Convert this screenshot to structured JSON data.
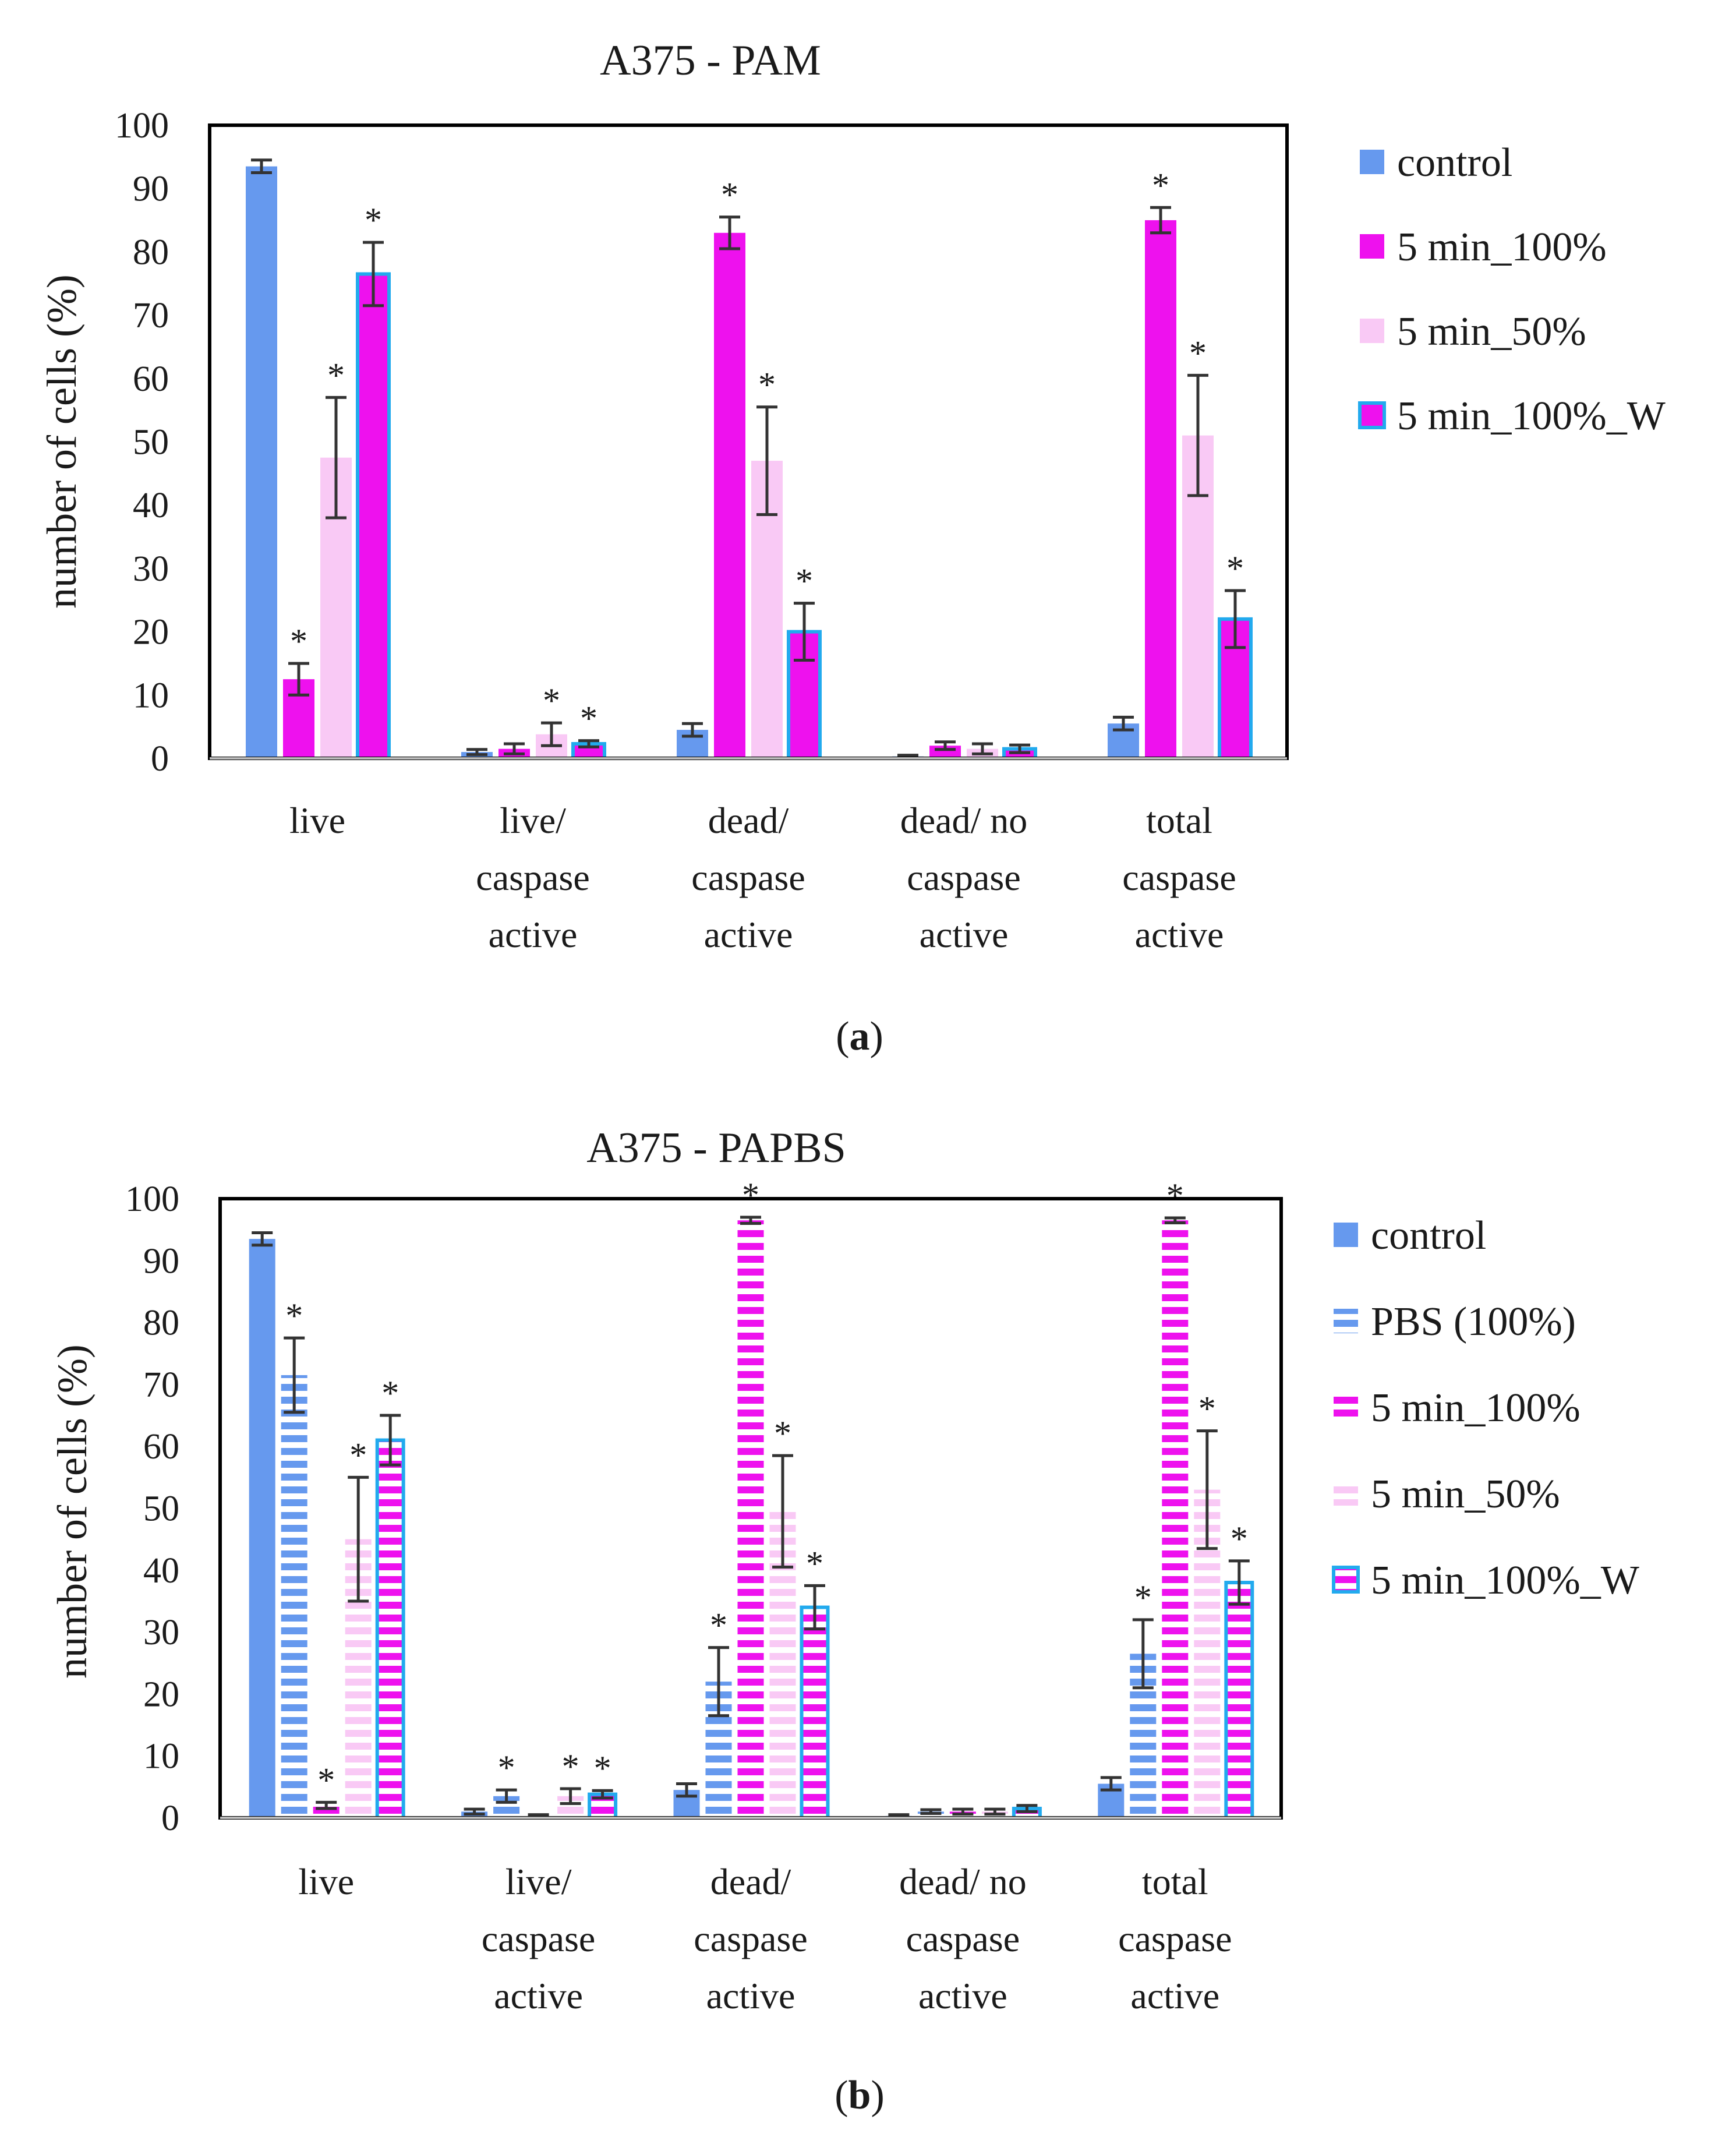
{
  "colors": {
    "control": "#6699ee",
    "min100": "#ee11ee",
    "min50": "#f9c9f5",
    "min100w": "#ee11ee",
    "min100w_border": "#22aaee",
    "pbs": "#6699ee",
    "error": "#333333",
    "axis_frame": "#000000"
  },
  "chart_data": [
    {
      "id": "a",
      "type": "bar",
      "title": "A375 - PAM",
      "caption_open": "(",
      "caption_letter": "a",
      "caption_close": ")",
      "ylabel": "number of cells (%)",
      "xlabel": "",
      "ylim": [
        0,
        100
      ],
      "yticks": [
        0,
        10,
        20,
        30,
        40,
        50,
        60,
        70,
        80,
        90,
        100
      ],
      "categories": [
        [
          "live"
        ],
        [
          "live/",
          "caspase",
          "active"
        ],
        [
          "dead/",
          "caspase",
          "active"
        ],
        [
          "dead/ no",
          "caspase",
          "active"
        ],
        [
          "total",
          "caspase",
          "active"
        ]
      ],
      "series": [
        {
          "name": "control",
          "style": "solid",
          "color_key": "control",
          "values": [
            93.5,
            1,
            4.5,
            0.3,
            5.5
          ],
          "errors": [
            1,
            0.4,
            1,
            0.2,
            1
          ],
          "stars": [
            false,
            false,
            false,
            false,
            false
          ]
        },
        {
          "name": "5 min_100%",
          "style": "solid",
          "color_key": "min100",
          "values": [
            12.5,
            1.5,
            83,
            2,
            85
          ],
          "errors": [
            2.5,
            0.8,
            2.5,
            0.6,
            2
          ],
          "stars": [
            true,
            false,
            true,
            false,
            true
          ]
        },
        {
          "name": "5 min_50%",
          "style": "solid",
          "color_key": "min50",
          "values": [
            47.5,
            3.8,
            47,
            1.5,
            51
          ],
          "errors": [
            9.5,
            1.8,
            8.5,
            0.8,
            9.5
          ],
          "stars": [
            true,
            true,
            true,
            false,
            true
          ]
        },
        {
          "name": "5 min_100%_W",
          "style": "bordered",
          "color_key": "min100w",
          "values": [
            76.5,
            2.3,
            20,
            1.5,
            22
          ],
          "errors": [
            5,
            0.5,
            4.5,
            0.6,
            4.5
          ],
          "stars": [
            true,
            true,
            true,
            false,
            true
          ]
        }
      ]
    },
    {
      "id": "b",
      "type": "bar",
      "title": "A375 - PAPBS",
      "caption_open": "(",
      "caption_letter": "b",
      "caption_close": ")",
      "ylabel": "number of cells (%)",
      "xlabel": "",
      "ylim": [
        0,
        100
      ],
      "yticks": [
        0,
        10,
        20,
        30,
        40,
        50,
        60,
        70,
        80,
        90,
        100
      ],
      "categories": [
        [
          "live"
        ],
        [
          "live/",
          "caspase",
          "active"
        ],
        [
          "dead/",
          "caspase",
          "active"
        ],
        [
          "dead/ no",
          "caspase",
          "active"
        ],
        [
          "total",
          "caspase",
          "active"
        ]
      ],
      "series": [
        {
          "name": "control",
          "style": "solid",
          "color_key": "control",
          "values": [
            93.5,
            1,
            4.5,
            0.3,
            5.5
          ],
          "errors": [
            1,
            0.4,
            1,
            0.2,
            1
          ],
          "stars": [
            false,
            false,
            false,
            false,
            false
          ]
        },
        {
          "name": "PBS (100%)",
          "style": "striped",
          "color_key": "pbs",
          "values": [
            71.5,
            3.5,
            22,
            1,
            26.5
          ],
          "errors": [
            6,
            1,
            5.5,
            0.3,
            5.5
          ],
          "stars": [
            true,
            true,
            true,
            false,
            true
          ]
        },
        {
          "name": "5 min_100%",
          "style": "striped",
          "color_key": "min100",
          "values": [
            2,
            0.3,
            96.5,
            1,
            96.5
          ],
          "errors": [
            0.5,
            0.2,
            0.5,
            0.4,
            0.4
          ],
          "stars": [
            true,
            false,
            true,
            false,
            true
          ]
        },
        {
          "name": "5 min_50%",
          "style": "striped",
          "color_key": "min50",
          "values": [
            45,
            3.5,
            49.5,
            1,
            53
          ],
          "errors": [
            10,
            1.2,
            9,
            0.4,
            9.5
          ],
          "stars": [
            true,
            true,
            true,
            false,
            true
          ]
        },
        {
          "name": "5 min_100%_W",
          "style": "striped-bordered",
          "color_key": "min100w",
          "values": [
            61,
            3.8,
            34,
            1.5,
            38
          ],
          "errors": [
            4,
            0.6,
            3.5,
            0.5,
            3.5
          ],
          "stars": [
            true,
            true,
            true,
            false,
            true
          ]
        }
      ]
    }
  ]
}
